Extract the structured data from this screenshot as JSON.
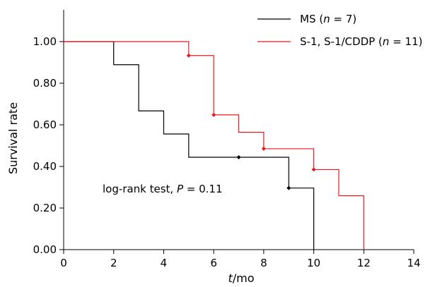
{
  "chart_data": {
    "type": "line",
    "subtype": "kaplan-meier step",
    "xlabel_var": "t",
    "xlabel_unit": "/mo",
    "ylabel": "Survival rate",
    "xlim": [
      0,
      14
    ],
    "ylim": [
      0,
      1.1
    ],
    "x_ticks": [
      0,
      2,
      4,
      6,
      8,
      10,
      12,
      14
    ],
    "x_tick_labels": [
      "0",
      "2",
      "4",
      "6",
      "8",
      "10",
      "12",
      "14"
    ],
    "y_ticks": [
      0,
      0.2,
      0.4,
      0.6,
      0.8,
      1.0
    ],
    "y_tick_labels": [
      "0.00",
      "0.20",
      "0.40",
      "0.60",
      "0.80",
      "1.00"
    ],
    "grid": false,
    "legend_position": "top-right",
    "annotation": {
      "prefix": "log-rank test, ",
      "var": "P",
      "suffix": " = 0.11"
    },
    "series": [
      {
        "name": "MS (n = 7)",
        "legend_prefix": "MS (",
        "legend_var": "n",
        "legend_suffix": " = 7)",
        "color": "#000000",
        "steps": [
          [
            0,
            1.0
          ],
          [
            2,
            0.889
          ],
          [
            3,
            0.667
          ],
          [
            4,
            0.556
          ],
          [
            5,
            0.444
          ],
          [
            9,
            0.296
          ],
          [
            10,
            0.0
          ]
        ],
        "censored": [
          [
            7,
            0.444
          ],
          [
            9,
            0.296
          ]
        ]
      },
      {
        "name": "S-1, S-1/CDDP (n = 11)",
        "legend_prefix": "S-1, S-1/CDDP (",
        "legend_var": "n",
        "legend_suffix": " = 11)",
        "color": "#e8191e",
        "steps": [
          [
            0,
            1.0
          ],
          [
            5,
            0.933
          ],
          [
            6,
            0.648
          ],
          [
            7,
            0.564
          ],
          [
            8,
            0.485
          ],
          [
            10,
            0.385
          ],
          [
            11,
            0.259
          ],
          [
            12,
            0.0
          ]
        ],
        "censored": [
          [
            5,
            0.933
          ],
          [
            6,
            0.648
          ],
          [
            8,
            0.485
          ],
          [
            10,
            0.385
          ]
        ]
      }
    ]
  }
}
